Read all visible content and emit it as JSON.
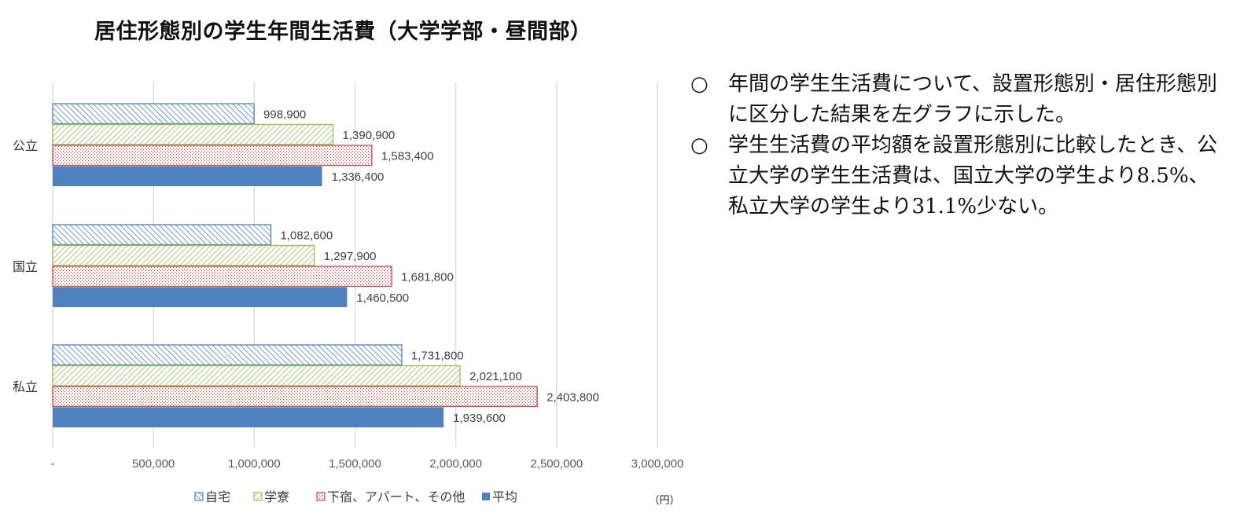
{
  "chart_data": {
    "type": "bar",
    "orientation": "horizontal",
    "title": "居住形態別の学生年間生活費（大学学部・昼間部）",
    "categories": [
      "公立",
      "国立",
      "私立"
    ],
    "series": [
      {
        "name": "自宅",
        "values": [
          998900,
          1082600,
          1731800
        ],
        "color": "#4f81bd",
        "pattern": "diagonal-hatch"
      },
      {
        "name": "学寮",
        "values": [
          1390900,
          1297900,
          2021100
        ],
        "color": "#9bbb59",
        "pattern": "diagonal-hatch"
      },
      {
        "name": "下宿、アパート、その他",
        "values": [
          1583400,
          1681800,
          2403800
        ],
        "color": "#c0504d",
        "pattern": "dots"
      },
      {
        "name": "平均",
        "values": [
          1336400,
          1460500,
          1939600
        ],
        "color": "#4f81bd",
        "pattern": "solid"
      }
    ],
    "data_labels": [
      [
        "998,900",
        "1,082,600",
        "1,731,800"
      ],
      [
        "1,390,900",
        "1,297,900",
        "2,021,100"
      ],
      [
        "1,583,400",
        "1,681,800",
        "2,403,800"
      ],
      [
        "1,336,400",
        "1,460,500",
        "1,939,600"
      ]
    ],
    "xlim": [
      0,
      3000000
    ],
    "xticks": [
      0,
      500000,
      1000000,
      1500000,
      2000000,
      2500000,
      3000000
    ],
    "xtick_labels": [
      "-",
      "500,000",
      "1,000,000",
      "1,500,000",
      "2,000,000",
      "2,500,000",
      "3,000,000"
    ],
    "unit": "（円）",
    "grid": "vertical",
    "legend": "bottom"
  },
  "notes": [
    {
      "bullet": "○",
      "text": "年間の学生生活費について、設置形態別・居住形態別に区分した結果を左グラフに示した。"
    },
    {
      "bullet": "○",
      "text": "学生生活費の平均額を設置形態別に比較したとき、公立大学の学生生活費は、国立大学の学生より8.5%、私立大学の学生より31.1%少ない。"
    }
  ]
}
